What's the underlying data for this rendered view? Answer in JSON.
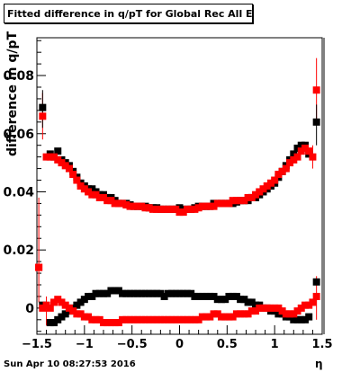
{
  "chart_data": {
    "type": "scatter",
    "title": "Fitted difference in q/pT for Global Rec All EtapT",
    "xlabel": "η",
    "ylabel": "difference in q/pT",
    "xlim": [
      -1.5,
      1.5
    ],
    "ylim": [
      -0.009,
      0.093
    ],
    "grid": false,
    "y_ticks": [
      "0",
      "0.02",
      "0.04",
      "0.06",
      "0.08"
    ],
    "x_ticks": [
      "−1.5",
      "−1",
      "−0.5",
      "0",
      "0.5",
      "1",
      "1.5"
    ],
    "series": [
      {
        "name": "",
        "color": "#000000",
        "x": [
          -1.44,
          -1.36,
          -1.32,
          -1.28,
          -1.24,
          -1.2,
          -1.16,
          -1.12,
          -1.08,
          -1.04,
          -1.0,
          -0.96,
          -0.92,
          -0.88,
          -0.84,
          -0.8,
          -0.76,
          -0.72,
          -0.68,
          -0.64,
          -0.6,
          -0.56,
          -0.52,
          -0.48,
          -0.44,
          -0.4,
          -0.36,
          -0.32,
          -0.28,
          -0.24,
          -0.2,
          -0.16,
          -0.12,
          -0.08,
          -0.04,
          0.0,
          0.04,
          0.08,
          0.12,
          0.16,
          0.2,
          0.24,
          0.28,
          0.32,
          0.36,
          0.4,
          0.44,
          0.48,
          0.52,
          0.56,
          0.6,
          0.64,
          0.68,
          0.72,
          0.76,
          0.8,
          0.84,
          0.88,
          0.92,
          0.96,
          1.0,
          1.04,
          1.08,
          1.12,
          1.16,
          1.2,
          1.24,
          1.28,
          1.32,
          1.36,
          1.44
        ],
        "y": [
          0.069,
          0.053,
          0.052,
          0.054,
          0.051,
          0.05,
          0.049,
          0.047,
          0.045,
          0.043,
          0.042,
          0.041,
          0.041,
          0.04,
          0.039,
          0.039,
          0.038,
          0.038,
          0.037,
          0.036,
          0.036,
          0.036,
          0.0355,
          0.035,
          0.035,
          0.035,
          0.035,
          0.0345,
          0.0345,
          0.0345,
          0.034,
          0.034,
          0.034,
          0.034,
          0.034,
          0.0345,
          0.034,
          0.034,
          0.034,
          0.0345,
          0.035,
          0.035,
          0.035,
          0.035,
          0.036,
          0.036,
          0.036,
          0.036,
          0.036,
          0.036,
          0.0365,
          0.037,
          0.037,
          0.037,
          0.038,
          0.038,
          0.039,
          0.04,
          0.041,
          0.042,
          0.043,
          0.045,
          0.047,
          0.049,
          0.051,
          0.053,
          0.055,
          0.056,
          0.056,
          0.053,
          0.064
        ],
        "y2": [
          0.001,
          -0.005,
          -0.005,
          -0.004,
          -0.003,
          -0.002,
          -0.001,
          0.0,
          0.001,
          0.002,
          0.003,
          0.004,
          0.004,
          0.005,
          0.005,
          0.005,
          0.005,
          0.006,
          0.006,
          0.006,
          0.005,
          0.005,
          0.005,
          0.005,
          0.005,
          0.005,
          0.005,
          0.005,
          0.005,
          0.005,
          0.005,
          0.004,
          0.005,
          0.005,
          0.005,
          0.005,
          0.005,
          0.005,
          0.005,
          0.004,
          0.004,
          0.004,
          0.004,
          0.004,
          0.004,
          0.003,
          0.003,
          0.003,
          0.004,
          0.004,
          0.004,
          0.003,
          0.003,
          0.002,
          0.002,
          0.001,
          0.001,
          0.0,
          0.0,
          -0.001,
          -0.001,
          -0.002,
          -0.002,
          -0.003,
          -0.003,
          -0.004,
          -0.004,
          -0.004,
          -0.004,
          -0.003,
          0.009
        ]
      },
      {
        "name": "",
        "color": "#ff0000",
        "x": [
          -1.48,
          -1.44,
          -1.4,
          -1.36,
          -1.32,
          -1.28,
          -1.24,
          -1.2,
          -1.16,
          -1.12,
          -1.08,
          -1.04,
          -1.0,
          -0.96,
          -0.92,
          -0.88,
          -0.84,
          -0.8,
          -0.76,
          -0.72,
          -0.68,
          -0.64,
          -0.6,
          -0.56,
          -0.52,
          -0.48,
          -0.44,
          -0.4,
          -0.36,
          -0.32,
          -0.28,
          -0.24,
          -0.2,
          -0.16,
          -0.12,
          -0.08,
          -0.04,
          0.0,
          0.04,
          0.08,
          0.12,
          0.16,
          0.2,
          0.24,
          0.28,
          0.32,
          0.36,
          0.4,
          0.44,
          0.48,
          0.52,
          0.56,
          0.6,
          0.64,
          0.68,
          0.72,
          0.76,
          0.8,
          0.84,
          0.88,
          0.92,
          0.96,
          1.0,
          1.04,
          1.08,
          1.12,
          1.16,
          1.2,
          1.24,
          1.28,
          1.32,
          1.36,
          1.4,
          1.44
        ],
        "y": [
          0.014,
          0.066,
          0.052,
          0.052,
          0.052,
          0.051,
          0.05,
          0.049,
          0.048,
          0.046,
          0.044,
          0.042,
          0.041,
          0.04,
          0.039,
          0.039,
          0.038,
          0.038,
          0.037,
          0.037,
          0.036,
          0.036,
          0.036,
          0.0355,
          0.035,
          0.035,
          0.035,
          0.035,
          0.0345,
          0.0345,
          0.034,
          0.034,
          0.034,
          0.034,
          0.034,
          0.034,
          0.034,
          0.033,
          0.033,
          0.034,
          0.034,
          0.034,
          0.0345,
          0.035,
          0.035,
          0.035,
          0.035,
          0.036,
          0.036,
          0.036,
          0.036,
          0.037,
          0.037,
          0.037,
          0.037,
          0.038,
          0.038,
          0.039,
          0.04,
          0.041,
          0.042,
          0.043,
          0.044,
          0.046,
          0.047,
          0.048,
          0.05,
          0.051,
          0.052,
          0.054,
          0.055,
          0.054,
          0.052,
          0.075
        ],
        "y2": [
          0.014,
          0.0,
          0.001,
          0.0,
          0.002,
          0.003,
          0.002,
          0.001,
          0.0,
          -0.001,
          -0.002,
          -0.002,
          -0.003,
          -0.003,
          -0.004,
          -0.004,
          -0.004,
          -0.005,
          -0.005,
          -0.005,
          -0.005,
          -0.005,
          -0.004,
          -0.004,
          -0.004,
          -0.004,
          -0.004,
          -0.004,
          -0.004,
          -0.004,
          -0.004,
          -0.004,
          -0.004,
          -0.004,
          -0.004,
          -0.004,
          -0.004,
          -0.004,
          -0.004,
          -0.004,
          -0.004,
          -0.004,
          -0.004,
          -0.003,
          -0.003,
          -0.003,
          -0.002,
          -0.002,
          -0.003,
          -0.003,
          -0.003,
          -0.003,
          -0.002,
          -0.002,
          -0.002,
          -0.002,
          -0.001,
          -0.001,
          0.0,
          0.0,
          0.0,
          0.0,
          0.0,
          0.0,
          -0.001,
          -0.002,
          -0.002,
          -0.002,
          -0.001,
          0.0,
          0.001,
          0.001,
          0.002,
          0.004
        ]
      }
    ],
    "error_bars": [
      {
        "series": 1,
        "x": -1.48,
        "lo": 0.002,
        "hi": 0.038
      },
      {
        "series": 1,
        "x": -1.44,
        "lo": 0.058,
        "hi": 0.074
      },
      {
        "series": 0,
        "x": -1.44,
        "lo": 0.062,
        "hi": 0.075
      },
      {
        "series": 1,
        "x": -1.4,
        "lo": -0.006,
        "hi": 0.004
      },
      {
        "series": 1,
        "x": 1.4,
        "lo": 0.048,
        "hi": 0.056
      },
      {
        "series": 1,
        "x": 1.44,
        "lo": 0.064,
        "hi": 0.086
      },
      {
        "series": 0,
        "x": 1.44,
        "lo": 0.056,
        "hi": 0.07
      },
      {
        "series": 1,
        "x": 1.44,
        "lo": -0.004,
        "hi": 0.011
      }
    ]
  },
  "footer": {
    "timestamp": "Sun Apr 10 08:27:53 2016"
  }
}
